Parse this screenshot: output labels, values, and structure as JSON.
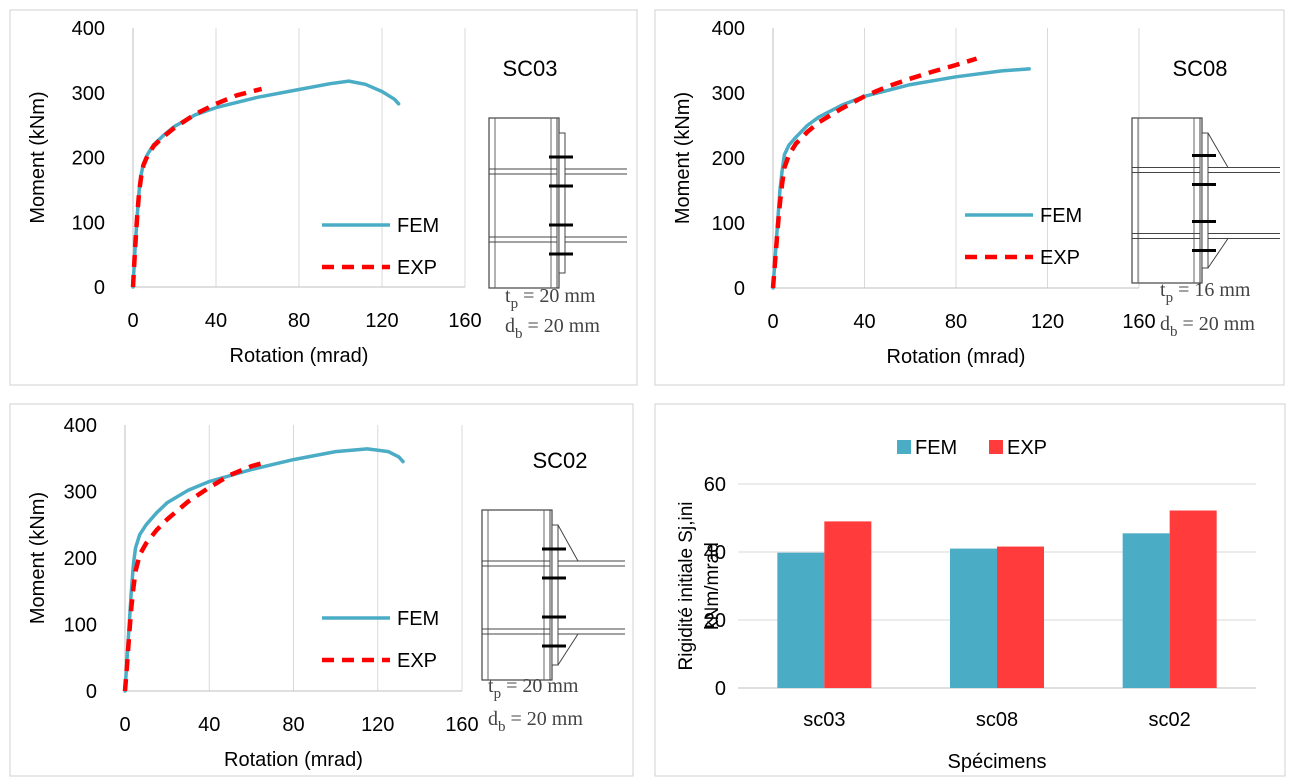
{
  "chart_data": [
    {
      "type": "line",
      "title": "SC03",
      "xlabel": "Rotation  (mrad)",
      "ylabel": "Moment  (kNm)",
      "xlim": [
        0,
        160
      ],
      "ylim": [
        0,
        400
      ],
      "xticks": [
        0,
        40,
        80,
        120,
        160
      ],
      "yticks": [
        0,
        100,
        200,
        300,
        400
      ],
      "grid": "vertical",
      "legend_position": "bottom-right",
      "annotations": {
        "tp_prefix": "t",
        "tp_sub": "p",
        "tp_value": " = 20 mm",
        "db_prefix": "d",
        "db_sub": "b",
        "db_value": " = 20 mm"
      },
      "detail_drawing": "stiffened-endplate-connection",
      "series": [
        {
          "name": "FEM",
          "color": "#4BACC6",
          "style": "solid",
          "x": [
            0,
            1,
            2,
            3,
            4,
            5,
            7,
            10,
            15,
            20,
            30,
            40,
            60,
            80,
            95,
            104,
            112,
            120,
            126,
            128
          ],
          "y": [
            0,
            60,
            110,
            150,
            175,
            190,
            205,
            220,
            235,
            248,
            266,
            277,
            293,
            305,
            314,
            318,
            313,
            302,
            290,
            283
          ]
        },
        {
          "name": "EXP",
          "color": "#FF0000",
          "style": "dashed",
          "x": [
            0,
            1,
            2,
            3,
            4,
            5,
            7,
            10,
            15,
            20,
            30,
            40,
            50,
            62
          ],
          "y": [
            0,
            60,
            110,
            148,
            172,
            188,
            203,
            218,
            233,
            246,
            267,
            283,
            296,
            306
          ]
        }
      ]
    },
    {
      "type": "line",
      "title": "SC08",
      "xlabel": "Rotation  (mrad)",
      "ylabel": "Moment  (kNm)",
      "xlim": [
        0,
        160
      ],
      "ylim": [
        0,
        400
      ],
      "xticks": [
        0,
        40,
        80,
        120,
        160
      ],
      "yticks": [
        0,
        100,
        200,
        300,
        400
      ],
      "grid": "vertical",
      "legend_position": "bottom-right",
      "annotations": {
        "tp_prefix": "t",
        "tp_sub": "p",
        "tp_value": " = 16 mm",
        "db_prefix": "d",
        "db_sub": "b",
        "db_value": " = 20 mm"
      },
      "detail_drawing": "haunched-endplate-connection",
      "series": [
        {
          "name": "FEM",
          "color": "#4BACC6",
          "style": "solid",
          "x": [
            0,
            1,
            2,
            3,
            4,
            5,
            7,
            10,
            15,
            20,
            30,
            40,
            60,
            80,
            100,
            112
          ],
          "y": [
            0,
            50,
            100,
            150,
            180,
            205,
            220,
            232,
            250,
            263,
            281,
            295,
            313,
            325,
            334,
            337
          ]
        },
        {
          "name": "EXP",
          "color": "#FF0000",
          "style": "dashed",
          "x": [
            0,
            1,
            2,
            3,
            4,
            5,
            7,
            10,
            15,
            20,
            30,
            40,
            50,
            60,
            70,
            80,
            89
          ],
          "y": [
            0,
            45,
            90,
            130,
            160,
            185,
            205,
            222,
            240,
            255,
            276,
            295,
            310,
            322,
            333,
            343,
            353
          ]
        }
      ]
    },
    {
      "type": "line",
      "title": "SC02",
      "xlabel": "Rotation  (mrad)",
      "ylabel": "Moment  (kNm)",
      "xlim": [
        0,
        160
      ],
      "ylim": [
        0,
        400
      ],
      "xticks": [
        0,
        40,
        80,
        120,
        160
      ],
      "yticks": [
        0,
        100,
        200,
        300,
        400
      ],
      "grid": "vertical",
      "legend_position": "bottom-right",
      "annotations": {
        "tp_prefix": "t",
        "tp_sub": "p",
        "tp_value": " = 20 mm",
        "db_prefix": "d",
        "db_sub": "b",
        "db_value": " = 20 mm"
      },
      "detail_drawing": "haunched-endplate-connection",
      "series": [
        {
          "name": "FEM",
          "color": "#4BACC6",
          "style": "solid",
          "x": [
            0,
            1,
            2,
            3,
            4,
            5,
            7,
            10,
            15,
            20,
            30,
            40,
            60,
            80,
            100,
            115,
            125,
            130,
            132
          ],
          "y": [
            0,
            50,
            100,
            150,
            190,
            215,
            235,
            250,
            268,
            283,
            302,
            315,
            333,
            348,
            360,
            364,
            360,
            352,
            345
          ]
        },
        {
          "name": "EXP",
          "color": "#FF0000",
          "style": "dashed",
          "x": [
            0,
            1,
            2,
            3,
            4,
            5,
            7,
            10,
            15,
            20,
            30,
            40,
            50,
            60,
            68
          ],
          "y": [
            0,
            40,
            85,
            125,
            155,
            180,
            205,
            222,
            242,
            258,
            285,
            306,
            325,
            338,
            345
          ]
        }
      ]
    },
    {
      "type": "bar",
      "title": "",
      "xlabel": "Spécimens",
      "ylabel_line1": "Rigidité initiale Sj,ini",
      "ylabel_line2": "kNm/mrad",
      "ylim": [
        0,
        60
      ],
      "yticks": [
        0,
        20,
        40,
        60
      ],
      "grid": "horizontal",
      "legend_position": "top",
      "categories": [
        "sc03",
        "sc08",
        "sc02"
      ],
      "series": [
        {
          "name": "FEM",
          "color": "#4BACC6",
          "values": [
            39.8,
            41.0,
            45.5
          ]
        },
        {
          "name": "EXP",
          "color": "#FF3B3B",
          "values": [
            49.0,
            41.6,
            52.2
          ]
        }
      ]
    }
  ]
}
